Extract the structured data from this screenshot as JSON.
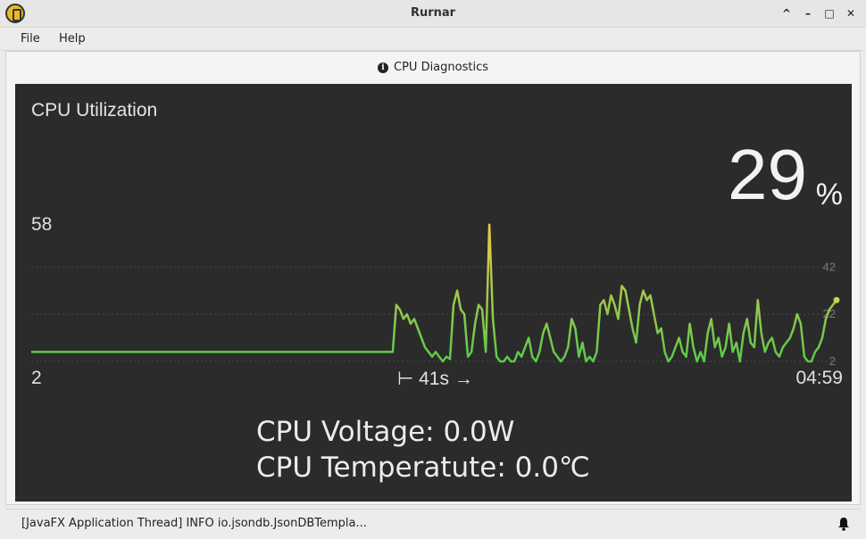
{
  "window": {
    "title": "Rurnar",
    "controls": [
      "^",
      "–",
      "□",
      "✕"
    ]
  },
  "menu": {
    "items": [
      "File",
      "Help"
    ]
  },
  "panel": {
    "title": "CPU Diagnostics"
  },
  "tile": {
    "title": "CPU Utilization",
    "value": "29",
    "unit": "%",
    "max_label": "58",
    "min_label": "2",
    "duration_label": "⊢ 41s →",
    "time_label": "04:59",
    "grid_labels": [
      "42",
      "22",
      "2"
    ],
    "chart_data": {
      "type": "line",
      "min": 2,
      "max": 58,
      "grid": [
        42,
        22,
        2
      ],
      "values": [
        6,
        6,
        6,
        6,
        6,
        6,
        6,
        6,
        6,
        6,
        6,
        6,
        6,
        6,
        6,
        6,
        6,
        6,
        6,
        6,
        6,
        6,
        6,
        6,
        6,
        6,
        6,
        6,
        6,
        6,
        6,
        6,
        6,
        6,
        6,
        6,
        6,
        6,
        6,
        6,
        6,
        6,
        6,
        6,
        6,
        6,
        6,
        6,
        6,
        6,
        6,
        6,
        6,
        6,
        6,
        6,
        6,
        6,
        6,
        6,
        6,
        6,
        6,
        6,
        6,
        6,
        6,
        6,
        6,
        6,
        6,
        6,
        6,
        6,
        6,
        6,
        6,
        6,
        6,
        6,
        6,
        6,
        6,
        6,
        6,
        6,
        6,
        6,
        6,
        6,
        6,
        6,
        6,
        6,
        6,
        6,
        6,
        6,
        6,
        6,
        6,
        6,
        26,
        24,
        20,
        22,
        18,
        20,
        16,
        12,
        8,
        6,
        4,
        6,
        4,
        2,
        4,
        3,
        26,
        32,
        24,
        22,
        4,
        6,
        18,
        26,
        24,
        6,
        60,
        20,
        4,
        2,
        2,
        4,
        2,
        2,
        6,
        4,
        8,
        12,
        4,
        2,
        6,
        14,
        18,
        12,
        6,
        4,
        2,
        4,
        8,
        20,
        16,
        4,
        10,
        2,
        4,
        2,
        6,
        26,
        28,
        22,
        30,
        26,
        20,
        34,
        32,
        24,
        16,
        10,
        26,
        32,
        28,
        30,
        22,
        14,
        16,
        6,
        2,
        4,
        8,
        12,
        6,
        4,
        18,
        8,
        2,
        6,
        2,
        14,
        20,
        8,
        12,
        4,
        8,
        18,
        6,
        10,
        2,
        14,
        20,
        10,
        8,
        28,
        14,
        6,
        10,
        12,
        6,
        4,
        8,
        10,
        12,
        16,
        22,
        18,
        4,
        2,
        2,
        6,
        8,
        12,
        20,
        24,
        26,
        28
      ]
    }
  },
  "info": {
    "voltage": "CPU Voltage: 0.0W",
    "temperature": "CPU Temperatute: 0.0℃"
  },
  "status": {
    "text": "[JavaFX Application Thread] INFO io.jsondb.JsonDBTempla..."
  },
  "colors": {
    "line_low": "#59c94a",
    "line_high": "#f0c84a",
    "tile_bg": "#2b2b2b"
  }
}
